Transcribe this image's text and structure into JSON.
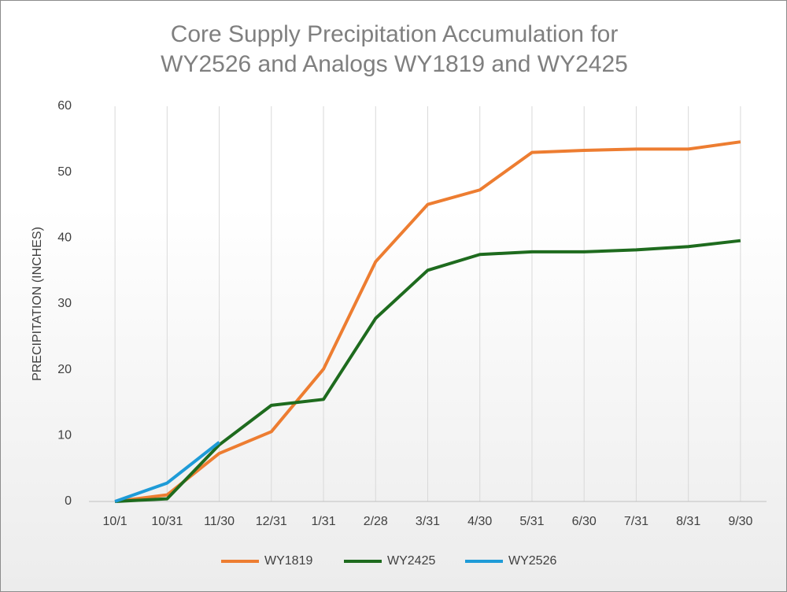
{
  "chart_data": {
    "type": "line",
    "title": "Core Supply Precipitation Accumulation for WY2526 and Analogs WY1819 and WY2425",
    "y_label": "PRECIPITATION (INCHES)",
    "categories": [
      "10/1",
      "10/31",
      "11/30",
      "12/31",
      "1/31",
      "2/28",
      "3/31",
      "4/30",
      "5/31",
      "6/30",
      "7/31",
      "8/31",
      "9/30"
    ],
    "series": [
      {
        "name": "WY1819",
        "color": "#ed7d31",
        "values": [
          0,
          1.0,
          7.3,
          10.6,
          20.1,
          36.4,
          45.1,
          47.3,
          53.0,
          53.3,
          53.5,
          53.5,
          54.6
        ]
      },
      {
        "name": "WY2425",
        "color": "#1e6b1e",
        "values": [
          0,
          0.4,
          8.6,
          14.6,
          15.5,
          27.8,
          35.1,
          37.5,
          37.9,
          37.9,
          38.2,
          38.7,
          39.6
        ]
      },
      {
        "name": "WY2526",
        "color": "#1e9bd7",
        "values": [
          0,
          2.8,
          9.0,
          null,
          null,
          null,
          null,
          null,
          null,
          null,
          null,
          null,
          null
        ]
      }
    ],
    "ylim": [
      0,
      60
    ],
    "yticks": [
      0,
      10,
      20,
      30,
      40,
      50,
      60
    ],
    "grid": "vertical",
    "legend": "bottom"
  }
}
